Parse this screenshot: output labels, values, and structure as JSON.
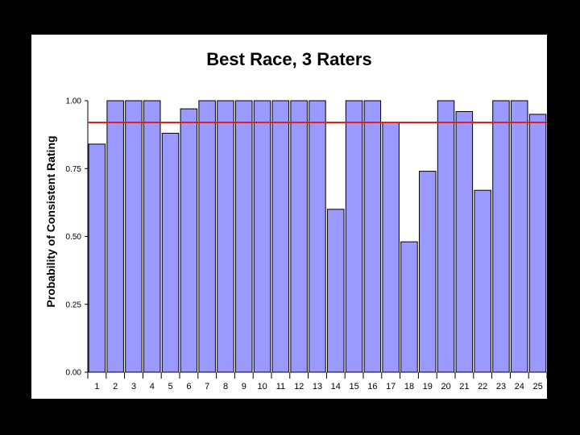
{
  "chart_data": {
    "type": "bar",
    "title": "Best Race, 3 Raters",
    "xlabel": "",
    "ylabel": "Probability of Consistent Rating",
    "ylim": [
      0,
      1.0
    ],
    "yticks": [
      "0.00",
      "0.25",
      "0.50",
      "0.75",
      "1.00"
    ],
    "categories": [
      "1",
      "2",
      "3",
      "4",
      "5",
      "6",
      "7",
      "8",
      "9",
      "10",
      "11",
      "12",
      "13",
      "14",
      "15",
      "16",
      "17",
      "18",
      "19",
      "20",
      "21",
      "22",
      "23",
      "24",
      "25"
    ],
    "values": [
      0.84,
      1.0,
      1.0,
      1.0,
      0.88,
      0.97,
      1.0,
      1.0,
      1.0,
      1.0,
      1.0,
      1.0,
      1.0,
      0.6,
      1.0,
      1.0,
      0.92,
      0.48,
      0.74,
      1.0,
      0.96,
      0.67,
      1.0,
      1.0,
      0.95
    ],
    "reference_line": 0.92,
    "bar_color": "#9999ff",
    "reference_line_color": "#e02020",
    "grid": false
  }
}
